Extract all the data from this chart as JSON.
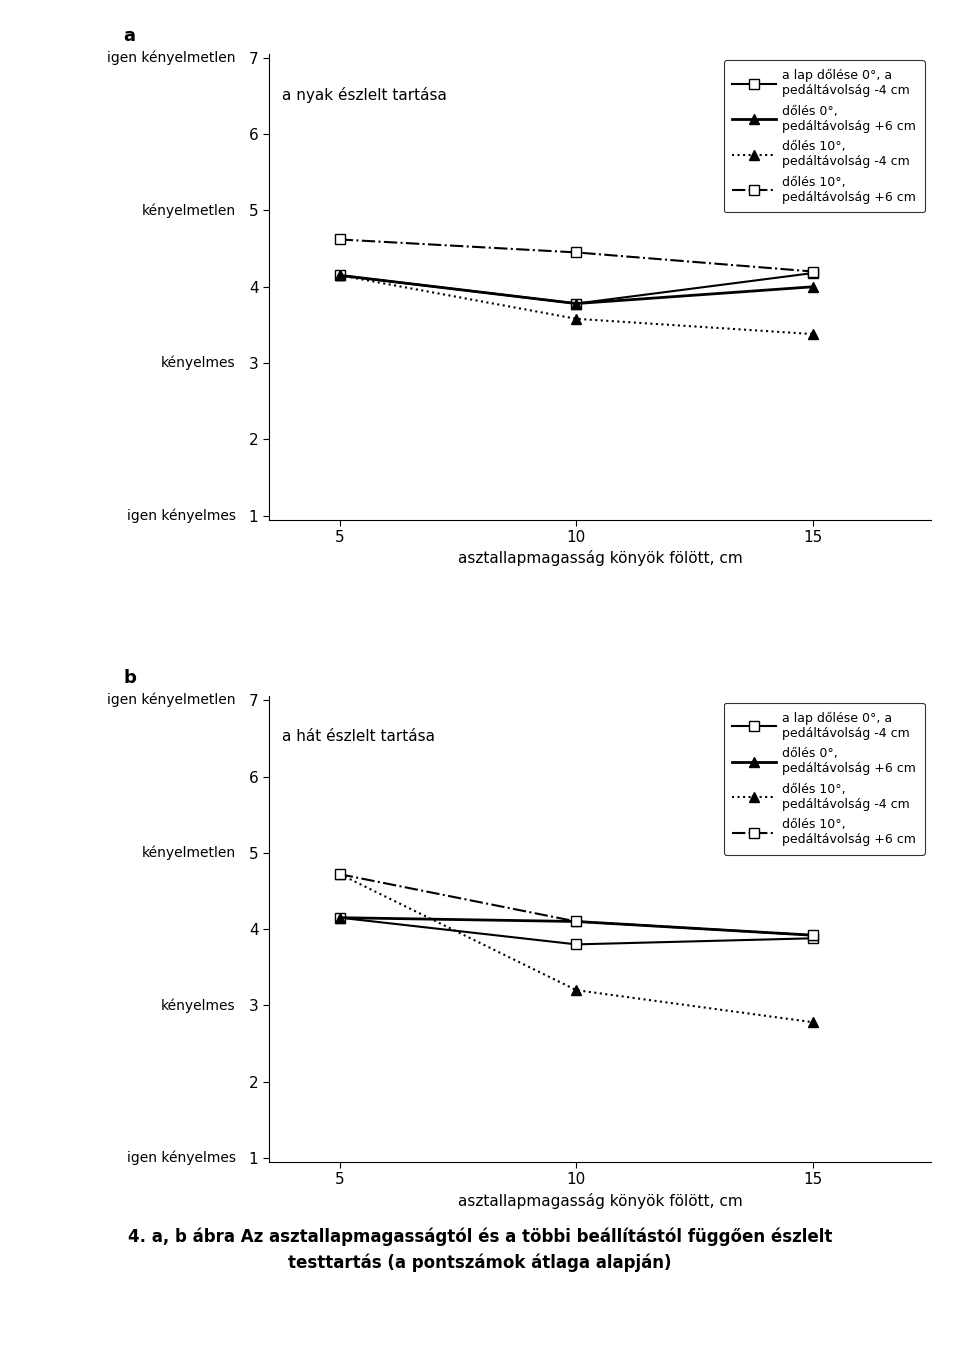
{
  "x": [
    5,
    10,
    15
  ],
  "chart_a": {
    "title": "a nyak észlelt tartása",
    "panel_label": "a",
    "series": [
      {
        "label": "a lap dőlése 0°, a\npedáltávolság -4 cm",
        "y": [
          4.15,
          3.78,
          4.18
        ],
        "linestyle": "-",
        "marker": "s",
        "fillstyle": "none",
        "linewidth": 1.5
      },
      {
        "label": "dőlés 0°,\npedáltávolság +6 cm",
        "y": [
          4.15,
          3.78,
          4.0
        ],
        "linestyle": "-",
        "marker": "^",
        "fillstyle": "full",
        "linewidth": 2.0
      },
      {
        "label": "dőlés 10°,\npedáltávolság -4 cm",
        "y": [
          4.15,
          3.58,
          3.38
        ],
        "linestyle": ":",
        "marker": "^",
        "fillstyle": "full",
        "linewidth": 1.5
      },
      {
        "label": "dőlés 10°,\npedáltávolság +6 cm",
        "y": [
          4.62,
          4.45,
          4.2
        ],
        "linestyle": "-.",
        "marker": "s",
        "fillstyle": "none",
        "linewidth": 1.5
      }
    ]
  },
  "chart_b": {
    "title": "a hát észlelt tartása",
    "panel_label": "b",
    "series": [
      {
        "label": "a lap dőlése 0°, a\npedáltávolság -4 cm",
        "y": [
          4.15,
          3.8,
          3.88
        ],
        "linestyle": "-",
        "marker": "s",
        "fillstyle": "none",
        "linewidth": 1.5
      },
      {
        "label": "dőlés 0°,\npedáltávolság +6 cm",
        "y": [
          4.15,
          4.1,
          3.92
        ],
        "linestyle": "-",
        "marker": "^",
        "fillstyle": "full",
        "linewidth": 2.0
      },
      {
        "label": "dőlés 10°,\npedáltávolság -4 cm",
        "y": [
          4.72,
          3.2,
          2.78
        ],
        "linestyle": ":",
        "marker": "^",
        "fillstyle": "full",
        "linewidth": 1.5
      },
      {
        "label": "dőlés 10°,\npedáltávolság +6 cm",
        "y": [
          4.72,
          4.1,
          3.92
        ],
        "linestyle": "-.",
        "marker": "s",
        "fillstyle": "none",
        "linewidth": 1.5
      }
    ]
  },
  "ylim": [
    1,
    7
  ],
  "ytick_nums": [
    1,
    2,
    3,
    4,
    5,
    6,
    7
  ],
  "ylabel_map": {
    "igen kényelmetlen": 7,
    "kényelmetlen": 5,
    "kényelmes": 3,
    "igen kényelmes": 1
  },
  "xlabel": "asztallapmagasság könyök fölött, cm",
  "xticks": [
    5,
    10,
    15
  ],
  "xlim": [
    3.5,
    17.5
  ],
  "caption_line1": "4. a, b ábra Az asztallapmagasságtól és a többi beállítástól függően észlelt",
  "caption_line2": "testtartás (a pontszámok átlaga alapján)"
}
